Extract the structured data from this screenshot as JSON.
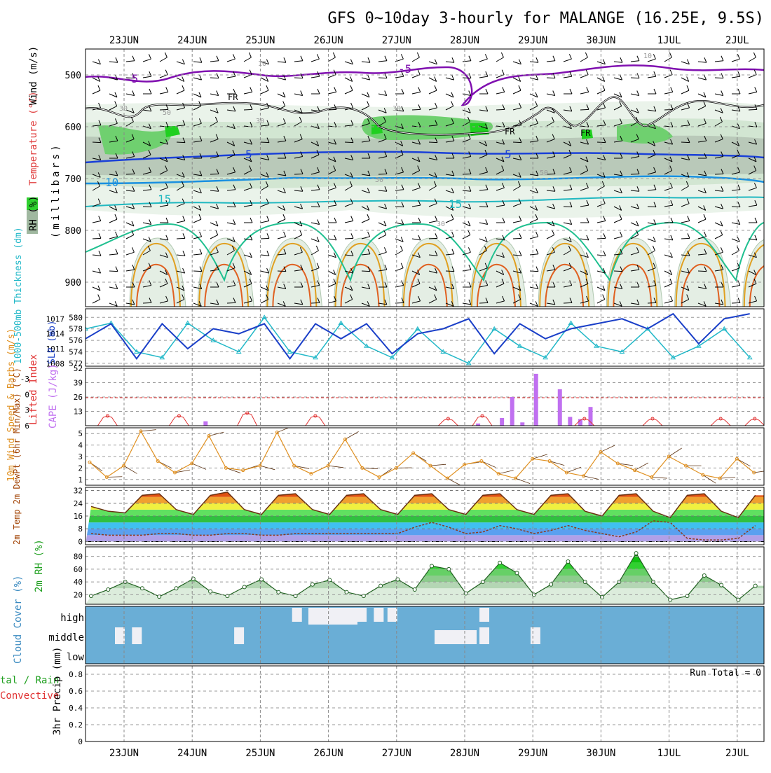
{
  "title": "GFS 0~10day 3-hourly for MALANGE (16.25E, 9.5S)",
  "dates": [
    "23JUN",
    "24JUN",
    "25JUN",
    "26JUN",
    "27JUN",
    "28JUN",
    "29JUN",
    "30JUN",
    "1JUL",
    "2JUL"
  ],
  "panels": {
    "upper_air": {
      "ylabel": "(millibars)",
      "legend": [
        "RH (%)",
        "Temperature (°C)",
        "Wind (m/s)"
      ],
      "ticks": [
        "500",
        "600",
        "700",
        "800",
        "900"
      ],
      "labels": {
        "t_m5a": "-5",
        "t_m5b": "-5",
        "t5a": "5",
        "t5b": "5",
        "t10": "10",
        "t15a": "15",
        "t15b": "15",
        "fr1": "FR",
        "fr2": "FR",
        "fr3": "FR",
        "rh10a": "10",
        "rh10b": "10",
        "rh30a": "30",
        "rh30b": "30",
        "rh30c": "30",
        "rh30d": "30",
        "rh50a": "50",
        "rh50b": "50",
        "rh50c": "50"
      }
    },
    "thickness": {
      "ylabel_left": "1000-500mb Thickness (dm)",
      "ylabel_right": "SLP (mb)",
      "ticks_left": [
        "580",
        "578",
        "576",
        "574",
        "572"
      ],
      "ticks_right": [
        "1017",
        "1014",
        "1011",
        "1008"
      ]
    },
    "cape": {
      "ylabel_left": "Lifted Index",
      "ylabel_right": "CAPE (J/kg)",
      "ticks_left": [
        "-3",
        "0",
        "3",
        "6"
      ],
      "ticks_right": [
        "52",
        "39",
        "26",
        "13"
      ]
    },
    "wind10m": {
      "ylabel": "10m Wind Speed & Barbs (m/s)",
      "ticks": [
        "5",
        "4",
        "3",
        "2",
        "1"
      ]
    },
    "temp2m": {
      "ylabel": "2m Temp 2m DewPt (6hr Min/Max) (°C)",
      "ticks": [
        "32",
        "24",
        "16",
        "8",
        "0"
      ]
    },
    "rh2m": {
      "ylabel": "2m RH (%)",
      "ticks": [
        "80",
        "60",
        "40",
        "20"
      ]
    },
    "cloud": {
      "ylabel": "Cloud Cover (%)",
      "levels": [
        "high",
        "middle",
        "low"
      ]
    },
    "precip": {
      "ylabel_left": "Total / Rain Convective",
      "ylabel": "3hr Precip (mm)",
      "ticks": [
        "0.8",
        "0.6",
        "0.4",
        "0.2",
        "0"
      ],
      "run_total": "Run Total = 0"
    }
  },
  "colors": {
    "thickness": "#22b8c8",
    "slp": "#1a3fc8",
    "cape": "#c070f0",
    "lifted_index": "#e03030",
    "wind": "#e09020",
    "temp_fill_hot": "#e05010",
    "rh": "#20a020",
    "cloud_bg": "#6aaed6",
    "cloud_gap": "#f0f0f5"
  },
  "chart_data": [
    {
      "type": "line",
      "panel": "thickness",
      "series": [
        {
          "axis": "1000-500mb Thickness (dm)",
          "x_days": [
            0,
            0.375,
            0.75,
            1.125,
            1.5,
            1.875,
            2.25,
            2.625,
            3.0,
            3.375,
            3.75,
            4.125,
            4.5,
            4.875,
            5.25,
            5.625,
            6.0,
            6.375,
            6.75,
            7.125,
            7.5,
            7.875,
            8.25,
            8.625,
            9.0,
            9.375,
            9.75
          ],
          "values": [
            578,
            579,
            574,
            573,
            579,
            576,
            574,
            580,
            574,
            573,
            579,
            575,
            573,
            578,
            574,
            572,
            578,
            575,
            573,
            579,
            575,
            574,
            578,
            573,
            575,
            578,
            573
          ]
        },
        {
          "axis": "SLP (mb)",
          "x_days": [
            0,
            0.375,
            0.75,
            1.125,
            1.5,
            1.875,
            2.25,
            2.625,
            3.0,
            3.375,
            3.75,
            4.125,
            4.5,
            4.875,
            5.25,
            5.625,
            6.0,
            6.375,
            6.75,
            7.125,
            7.5,
            7.875,
            8.25,
            8.625,
            9.0,
            9.375,
            9.75
          ],
          "values": [
            1013,
            1016,
            1009,
            1016,
            1011,
            1015,
            1014,
            1016,
            1009,
            1016,
            1013,
            1016,
            1010,
            1014,
            1015,
            1017,
            1010,
            1016,
            1013,
            1015,
            1016,
            1017,
            1015,
            1018,
            1012,
            1017,
            1018
          ]
        }
      ]
    },
    {
      "type": "bar",
      "panel": "cape",
      "x_days": [
        0.6,
        4.6,
        4.95,
        5.1,
        5.25,
        5.45,
        5.8,
        5.95,
        6.1,
        6.25
      ],
      "values": [
        4,
        2,
        7,
        26,
        3,
        47,
        33,
        8,
        6,
        17
      ],
      "units": "J/kg"
    },
    {
      "type": "line",
      "panel": "lifted_index",
      "x_days": [
        -0.5,
        0.55,
        1.55,
        2.55,
        4.5,
        5.0,
        6.5,
        7.5,
        8.5,
        9.0
      ],
      "values": [
        5,
        5,
        4,
        5,
        6,
        5,
        6,
        6,
        6,
        6
      ]
    },
    {
      "type": "line",
      "panel": "wind10m",
      "x_days": [
        0,
        0.25,
        0.5,
        0.75,
        1.0,
        1.25,
        1.5,
        1.75,
        2.0,
        2.25,
        2.5,
        2.75,
        3.0,
        3.25,
        3.5,
        3.75,
        4.0,
        4.25,
        4.5,
        4.75,
        5.0,
        5.25,
        5.5,
        5.75,
        6.0,
        6.25,
        6.5,
        6.75,
        7.0,
        7.25,
        7.5,
        7.75,
        8.0,
        8.25,
        8.5,
        8.75,
        9.0,
        9.25,
        9.5,
        9.75
      ],
      "values": [
        2.5,
        1.2,
        2.2,
        5.2,
        2.6,
        1.6,
        2.4,
        4.8,
        2.0,
        1.8,
        2.2,
        5.1,
        2.2,
        1.5,
        2.2,
        4.5,
        2.0,
        1.2,
        2.0,
        3.3,
        2.2,
        1.1,
        2.3,
        2.6,
        1.5,
        1.1,
        2.8,
        2.6,
        1.6,
        1.3,
        3.4,
        2.4,
        1.8,
        1.2,
        3.0,
        2.2,
        1.4,
        1.1,
        2.8,
        1.6
      ]
    },
    {
      "type": "area",
      "panel": "temp2m",
      "x_days": [
        0,
        0.25,
        0.5,
        0.75,
        1.0,
        1.25,
        1.5,
        1.75,
        2.0,
        2.25,
        2.5,
        2.75,
        3.0,
        3.25,
        3.5,
        3.75,
        4.0,
        4.25,
        4.5,
        4.75,
        5.0,
        5.25,
        5.5,
        5.75,
        6.0,
        6.25,
        6.5,
        6.75,
        7.0,
        7.25,
        7.5,
        7.75,
        8.0,
        8.25,
        8.5,
        8.75,
        9.0,
        9.25,
        9.5,
        9.75
      ],
      "temperature": [
        22,
        19,
        18,
        29,
        30,
        20,
        17,
        29,
        31,
        20,
        17,
        29,
        30,
        20,
        17,
        29,
        30,
        20,
        17,
        29,
        30,
        20,
        17,
        29,
        30,
        20,
        17,
        29,
        30,
        19,
        16,
        29,
        30,
        19,
        15,
        29,
        30,
        19,
        15,
        29
      ],
      "dewpoint": [
        5,
        4,
        4,
        4,
        5,
        5,
        4,
        4,
        5,
        5,
        4,
        4,
        5,
        5,
        5,
        5,
        5,
        5,
        5,
        9,
        12,
        9,
        5,
        6,
        10,
        8,
        5,
        7,
        10,
        7,
        5,
        3,
        6,
        13,
        12,
        2,
        1,
        1,
        2,
        10
      ],
      "units": "°C"
    },
    {
      "type": "area",
      "panel": "rh2m",
      "x_days": [
        0,
        0.25,
        0.5,
        0.75,
        1.0,
        1.25,
        1.5,
        1.75,
        2.0,
        2.25,
        2.5,
        2.75,
        3.0,
        3.25,
        3.5,
        3.75,
        4.0,
        4.25,
        4.5,
        4.75,
        5.0,
        5.25,
        5.5,
        5.75,
        6.0,
        6.25,
        6.5,
        6.75,
        7.0,
        7.25,
        7.5,
        7.75,
        8.0,
        8.25,
        8.5,
        8.75,
        9.0,
        9.25,
        9.5,
        9.75
      ],
      "values": [
        18,
        28,
        40,
        30,
        17,
        30,
        45,
        25,
        18,
        32,
        44,
        24,
        18,
        36,
        43,
        24,
        18,
        34,
        44,
        28,
        65,
        60,
        22,
        40,
        70,
        54,
        20,
        36,
        72,
        40,
        16,
        40,
        85,
        40,
        12,
        18,
        50,
        35,
        12,
        34
      ],
      "units": "%"
    },
    {
      "type": "bar",
      "panel": "cloud",
      "levels": [
        "high",
        "middle",
        "low"
      ],
      "x_days": [
        0,
        0.25,
        1.75,
        2.6,
        3.3,
        3.55,
        3.8,
        4.0,
        5.35,
        6.1
      ],
      "high_gap": [
        0,
        0,
        0,
        1,
        1,
        1,
        1,
        1,
        1,
        0
      ],
      "middle_gap": [
        1,
        1,
        1,
        0,
        0,
        0,
        0,
        0,
        1,
        1
      ]
    },
    {
      "type": "bar",
      "panel": "precip",
      "ylim": [
        0,
        0.9
      ],
      "values": [],
      "units": "mm"
    }
  ]
}
